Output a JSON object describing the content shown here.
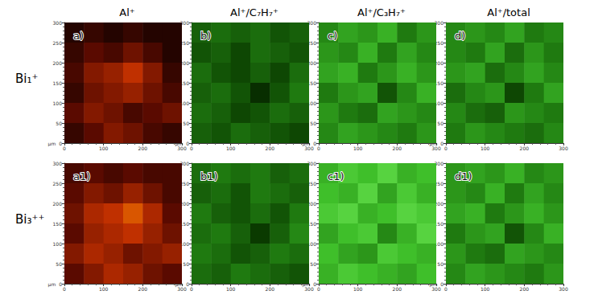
{
  "column_titles": [
    "Al⁺",
    "Al⁺/C₇H₇⁺",
    "Al⁺/C₃H₇⁺",
    "Al⁺/total"
  ],
  "row_titles": [
    "Bi₁⁺",
    "Bi₃⁺⁺"
  ],
  "chart_data": [
    {
      "type": "heatmap",
      "title": "a)",
      "xlabel": "µm",
      "xlim": [
        0,
        300
      ],
      "xticks": [
        0,
        100,
        200,
        300
      ],
      "ylim": [
        0,
        300
      ],
      "yticks": [
        0,
        50,
        100,
        150,
        200,
        250,
        300
      ],
      "color_range": [
        0,
        100
      ],
      "colors": [
        "#000000",
        "#5a0a00",
        "#c03000",
        "#ff9000",
        "#ffff80"
      ],
      "cells": [
        [
          10,
          15,
          10,
          15,
          10,
          10
        ],
        [
          15,
          25,
          20,
          30,
          20,
          10
        ],
        [
          20,
          35,
          40,
          50,
          35,
          15
        ],
        [
          15,
          30,
          35,
          40,
          30,
          20
        ],
        [
          25,
          35,
          30,
          20,
          25,
          30
        ],
        [
          15,
          25,
          35,
          30,
          20,
          15
        ]
      ]
    },
    {
      "type": "heatmap",
      "title": "b)",
      "xlabel": "µm",
      "xlim": [
        0,
        300
      ],
      "xticks": [
        0,
        100,
        200,
        300
      ],
      "ylim": [
        0,
        300
      ],
      "yticks": [
        0,
        50,
        100,
        150,
        200,
        250,
        300
      ],
      "color_range": [
        0,
        100
      ],
      "colors": [
        "#000000",
        "#0a3a00",
        "#1f7a10",
        "#3fbf2a",
        "#7cf060"
      ],
      "cells": [
        [
          40,
          45,
          40,
          45,
          35,
          40
        ],
        [
          35,
          40,
          30,
          45,
          40,
          35
        ],
        [
          45,
          35,
          30,
          40,
          30,
          45
        ],
        [
          40,
          45,
          35,
          20,
          35,
          50
        ],
        [
          45,
          40,
          30,
          35,
          45,
          40
        ],
        [
          40,
          35,
          45,
          40,
          35,
          30
        ]
      ]
    },
    {
      "type": "heatmap",
      "title": "c)",
      "xlabel": "µm",
      "xlim": [
        0,
        300
      ],
      "xticks": [
        0,
        100,
        200,
        300
      ],
      "ylim": [
        0,
        300
      ],
      "yticks": [
        0,
        50,
        100,
        150,
        200,
        250,
        300
      ],
      "color_range": [
        0,
        100
      ],
      "colors": [
        "#000000",
        "#0a3a00",
        "#1f7a10",
        "#3fbf2a",
        "#7cf060"
      ],
      "cells": [
        [
          55,
          65,
          60,
          70,
          50,
          60
        ],
        [
          60,
          55,
          70,
          50,
          65,
          55
        ],
        [
          65,
          70,
          50,
          60,
          70,
          60
        ],
        [
          50,
          60,
          65,
          35,
          55,
          70
        ],
        [
          60,
          50,
          45,
          65,
          60,
          55
        ],
        [
          55,
          65,
          60,
          55,
          50,
          60
        ]
      ]
    },
    {
      "type": "heatmap",
      "title": "d)",
      "xlabel": "µm",
      "xlim": [
        0,
        300
      ],
      "xticks": [
        0,
        100,
        200,
        300
      ],
      "ylim": [
        0,
        300
      ],
      "yticks": [
        0,
        50,
        100,
        150,
        200,
        250,
        300
      ],
      "color_range": [
        0,
        100
      ],
      "colors": [
        "#000000",
        "#0a3a00",
        "#1f7a10",
        "#3fbf2a",
        "#7cf060"
      ],
      "cells": [
        [
          55,
          60,
          55,
          65,
          50,
          55
        ],
        [
          55,
          50,
          65,
          45,
          60,
          50
        ],
        [
          60,
          65,
          45,
          55,
          65,
          55
        ],
        [
          45,
          55,
          60,
          30,
          50,
          65
        ],
        [
          55,
          45,
          40,
          60,
          55,
          50
        ],
        [
          50,
          60,
          55,
          50,
          45,
          55
        ]
      ]
    },
    {
      "type": "heatmap",
      "title": "a1)",
      "xlabel": "µm",
      "xlim": [
        0,
        300
      ],
      "xticks": [
        0,
        100,
        200,
        300
      ],
      "ylim": [
        0,
        300
      ],
      "yticks": [
        0,
        50,
        100,
        150,
        200,
        250,
        300
      ],
      "color_range": [
        0,
        100
      ],
      "colors": [
        "#000000",
        "#5a0a00",
        "#c03000",
        "#ff9000",
        "#ffff80"
      ],
      "cells": [
        [
          20,
          25,
          20,
          25,
          20,
          20
        ],
        [
          25,
          35,
          30,
          40,
          30,
          20
        ],
        [
          30,
          45,
          50,
          60,
          45,
          25
        ],
        [
          25,
          40,
          45,
          50,
          40,
          30
        ],
        [
          35,
          45,
          40,
          30,
          35,
          40
        ],
        [
          25,
          35,
          45,
          40,
          30,
          25
        ]
      ]
    },
    {
      "type": "heatmap",
      "title": "b1)",
      "xlabel": "µm",
      "xlim": [
        0,
        300
      ],
      "xticks": [
        0,
        100,
        200,
        300
      ],
      "ylim": [
        0,
        300
      ],
      "yticks": [
        0,
        50,
        100,
        150,
        200,
        250,
        300
      ],
      "color_range": [
        0,
        100
      ],
      "colors": [
        "#000000",
        "#0a3a00",
        "#1f7a10",
        "#3fbf2a",
        "#7cf060"
      ],
      "cells": [
        [
          45,
          50,
          45,
          50,
          40,
          45
        ],
        [
          40,
          45,
          35,
          50,
          45,
          40
        ],
        [
          50,
          40,
          35,
          45,
          35,
          50
        ],
        [
          45,
          50,
          40,
          25,
          40,
          55
        ],
        [
          50,
          45,
          35,
          40,
          50,
          45
        ],
        [
          45,
          40,
          50,
          45,
          40,
          35
        ]
      ]
    },
    {
      "type": "heatmap",
      "title": "c1)",
      "xlabel": "µm",
      "xlim": [
        0,
        300
      ],
      "xticks": [
        0,
        100,
        200,
        300
      ],
      "ylim": [
        0,
        300
      ],
      "yticks": [
        0,
        50,
        100,
        150,
        200,
        250,
        300
      ],
      "color_range": [
        0,
        100
      ],
      "colors": [
        "#000000",
        "#0a3a00",
        "#1f7a10",
        "#3fbf2a",
        "#7cf060"
      ],
      "cells": [
        [
          70,
          80,
          75,
          85,
          70,
          75
        ],
        [
          75,
          70,
          85,
          65,
          80,
          70
        ],
        [
          80,
          85,
          70,
          75,
          85,
          80
        ],
        [
          65,
          75,
          80,
          55,
          70,
          85
        ],
        [
          75,
          65,
          60,
          80,
          75,
          70
        ],
        [
          70,
          80,
          75,
          70,
          65,
          75
        ]
      ]
    },
    {
      "type": "heatmap",
      "title": "d1)",
      "xlabel": "µm",
      "xlim": [
        0,
        300
      ],
      "xticks": [
        0,
        100,
        200,
        300
      ],
      "ylim": [
        0,
        300
      ],
      "yticks": [
        0,
        50,
        100,
        150,
        200,
        250,
        300
      ],
      "color_range": [
        0,
        100
      ],
      "colors": [
        "#000000",
        "#0a3a00",
        "#1f7a10",
        "#3fbf2a",
        "#7cf060"
      ],
      "cells": [
        [
          60,
          65,
          60,
          70,
          55,
          60
        ],
        [
          60,
          55,
          70,
          50,
          65,
          55
        ],
        [
          65,
          70,
          50,
          60,
          70,
          60
        ],
        [
          50,
          60,
          65,
          35,
          55,
          70
        ],
        [
          60,
          50,
          45,
          65,
          60,
          55
        ],
        [
          55,
          65,
          60,
          55,
          50,
          60
        ]
      ]
    }
  ]
}
